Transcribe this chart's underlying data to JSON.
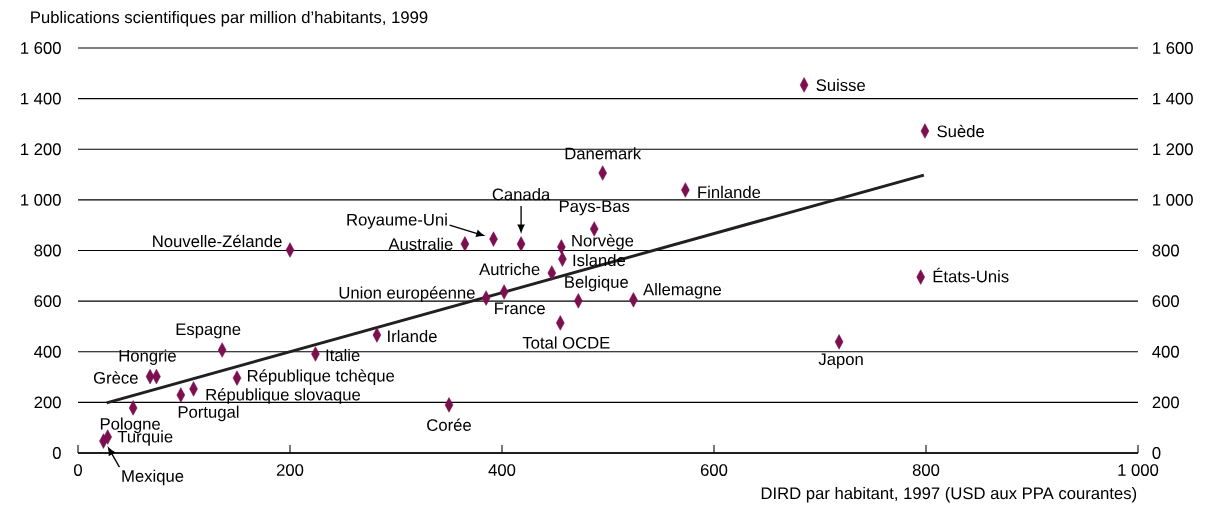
{
  "chart_data": {
    "type": "scatter",
    "ylabel": "Publications scientifiques par million d’habitants, 1999",
    "xlabel": "DIRD par habitant, 1997 (USD aux PPA courantes)",
    "xlim": [
      0,
      1000
    ],
    "xticks": [
      0,
      200,
      400,
      600,
      800,
      {
        "value": 1000,
        "label": "1 000"
      }
    ],
    "ylim": [
      0,
      1600
    ],
    "yticks": [
      0,
      200,
      400,
      600,
      800,
      {
        "value": 1000,
        "label": "1 000"
      },
      {
        "value": 1200,
        "label": "1 200"
      },
      {
        "value": 1400,
        "label": "1 400"
      },
      {
        "value": 1600,
        "label": "1 600"
      }
    ],
    "y2lim": [
      0,
      1600
    ],
    "y2ticks": [
      0,
      200,
      400,
      600,
      800,
      {
        "value": 1000,
        "label": "1 000"
      },
      {
        "value": 1200,
        "label": "1 200"
      },
      {
        "value": 1400,
        "label": "1 400"
      },
      {
        "value": 1600,
        "label": "1 600"
      }
    ],
    "grid": "y",
    "series": [
      {
        "marker": "diamond",
        "color": "#7b0f4f",
        "x": [
          685,
          799,
          495,
          573,
          795,
          718,
          524,
          487,
          456,
          457,
          418,
          392,
          365,
          200,
          447,
          385,
          402,
          472,
          455,
          282,
          224,
          136,
          150,
          109,
          97,
          74,
          68,
          52,
          28,
          24,
          350
        ],
        "values": [
          1454,
          1272,
          1106,
          1039,
          695,
          439,
          605,
          885,
          814,
          766,
          826,
          845,
          826,
          802,
          711,
          612,
          636,
          601,
          514,
          466,
          391,
          407,
          296,
          253,
          229,
          302,
          302,
          178,
          63,
          47,
          190
        ]
      },
      {
        "type": "line",
        "color": "#231f20",
        "x": [
          27,
          798
        ],
        "values": [
          198,
          1098
        ]
      }
    ],
    "annotations": [
      {
        "text": "Suisse",
        "x": 685,
        "y": 1454
      },
      {
        "text": "Suède",
        "x": 799,
        "y": 1272
      },
      {
        "text": "Danemark",
        "x": 495,
        "y": 1106
      },
      {
        "text": "Finlande",
        "x": 573,
        "y": 1039
      },
      {
        "text": "États-Unis",
        "x": 795,
        "y": 695
      },
      {
        "text": "Japon",
        "x": 718,
        "y": 439
      },
      {
        "text": "Allemagne",
        "x": 524,
        "y": 605
      },
      {
        "text": "Pays-Bas",
        "x": 487,
        "y": 885
      },
      {
        "text": "Norvège",
        "x": 456,
        "y": 814
      },
      {
        "text": "Islande",
        "x": 457,
        "y": 766
      },
      {
        "text": "Canada",
        "x": 418,
        "y": 826
      },
      {
        "text": "Royaume-Uni",
        "x": 392,
        "y": 845
      },
      {
        "text": "Australie",
        "x": 365,
        "y": 826
      },
      {
        "text": "Nouvelle-Zélande",
        "x": 200,
        "y": 802
      },
      {
        "text": "Autriche",
        "x": 447,
        "y": 711
      },
      {
        "text": "Union européenne",
        "x": 385,
        "y": 612
      },
      {
        "text": "France",
        "x": 402,
        "y": 636
      },
      {
        "text": "Belgique",
        "x": 472,
        "y": 601
      },
      {
        "text": "Total OCDE",
        "x": 455,
        "y": 514
      },
      {
        "text": "Irlande",
        "x": 282,
        "y": 466
      },
      {
        "text": "Italie",
        "x": 224,
        "y": 391
      },
      {
        "text": "Espagne",
        "x": 136,
        "y": 407
      },
      {
        "text": "République tchèque",
        "x": 150,
        "y": 296
      },
      {
        "text": "République slovaque",
        "x": 109,
        "y": 253
      },
      {
        "text": "Portugal",
        "x": 97,
        "y": 229
      },
      {
        "text": "Hongrie",
        "x": 74,
        "y": 302
      },
      {
        "text": "Grèce",
        "x": 68,
        "y": 302
      },
      {
        "text": "Pologne",
        "x": 52,
        "y": 178
      },
      {
        "text": "Turquie",
        "x": 28,
        "y": 63
      },
      {
        "text": "Mexique",
        "x": 24,
        "y": 47
      },
      {
        "text": "Corée",
        "x": 350,
        "y": 190
      }
    ]
  }
}
